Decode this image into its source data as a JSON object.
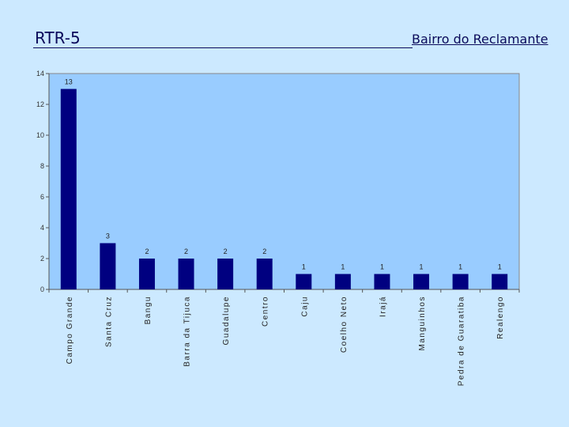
{
  "slide": {
    "title": "RTR-5",
    "subtitle": "Bairro do Reclamante"
  },
  "colors": {
    "background": "#cce9ff",
    "plot_area": "#99ccff",
    "bar": "#000080"
  },
  "chart_data": {
    "type": "bar",
    "categories": [
      "Campo Grande",
      "Santa Cruz",
      "Bangu",
      "Barra da Tijuca",
      "Guadalupe",
      "Centro",
      "Caju",
      "Coelho Neto",
      "Irajá",
      "Manguinhos",
      "Pedra de Guaratiba",
      "Realengo"
    ],
    "values": [
      13,
      3,
      2,
      2,
      2,
      2,
      1,
      1,
      1,
      1,
      1,
      1
    ],
    "ylim": [
      0,
      14
    ],
    "yticks": [
      0,
      2,
      4,
      6,
      8,
      10,
      12,
      14
    ],
    "grid": false,
    "legend": "none",
    "data_labels": true
  }
}
